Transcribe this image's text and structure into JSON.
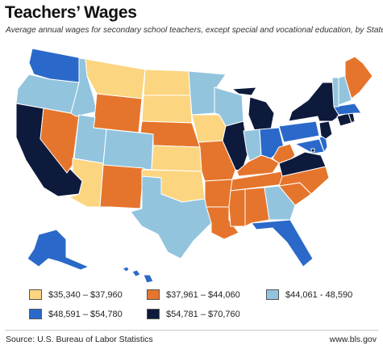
{
  "title": "Teachers’ Wages",
  "subtitle": "Average annual wages for secondary school teachers, except special and vocational education, by State",
  "colors": {
    "tier1": "#fbd57f",
    "tier2": "#e5752c",
    "tier3": "#92c4de",
    "tier4": "#2a69c9",
    "tier5": "#0d1a3c",
    "border": "#ffffff",
    "water": "#ffffff"
  },
  "legend": [
    {
      "label": "$35,340 – $37,960",
      "tier": "tier1"
    },
    {
      "label": "$37,961 – $44,060",
      "tier": "tier2"
    },
    {
      "label": "$44,061 - 48,590",
      "tier": "tier3"
    },
    {
      "label": "$48,591 – $54,780",
      "tier": "tier4"
    },
    {
      "label": "$54,781 – $70,760",
      "tier": "tier5"
    }
  ],
  "states": {
    "WA": "tier4",
    "OR": "tier3",
    "CA": "tier5",
    "NV": "tier2",
    "ID": "tier3",
    "MT": "tier1",
    "WY": "tier2",
    "UT": "tier3",
    "AZ": "tier1",
    "CO": "tier3",
    "NM": "tier2",
    "ND": "tier1",
    "SD": "tier1",
    "NE": "tier2",
    "KS": "tier1",
    "OK": "tier1",
    "TX": "tier3",
    "MN": "tier3",
    "IA": "tier1",
    "MO": "tier2",
    "AR": "tier2",
    "LA": "tier2",
    "WI": "tier3",
    "IL": "tier5",
    "MI": "tier5",
    "IN": "tier3",
    "OH": "tier4",
    "KY": "tier2",
    "TN": "tier2",
    "MS": "tier2",
    "AL": "tier2",
    "GA": "tier3",
    "FL": "tier4",
    "SC": "tier2",
    "NC": "tier2",
    "VA": "tier5",
    "WV": "tier2",
    "PA": "tier4",
    "NY": "tier5",
    "VT": "tier3",
    "NH": "tier3",
    "ME": "tier2",
    "MA": "tier4",
    "RI": "tier5",
    "CT": "tier5",
    "NJ": "tier5",
    "DE": "tier4",
    "MD": "tier4",
    "DC": "tier5",
    "AK": "tier4",
    "HI": "tier4"
  },
  "footer": {
    "source": "Source: U.S. Bureau of Labor Statistics",
    "site": "www.bls.gov"
  }
}
